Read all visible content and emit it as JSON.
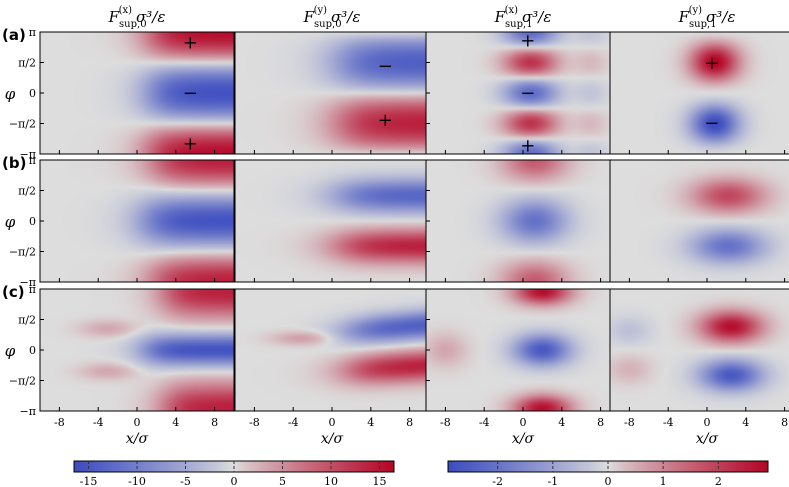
{
  "chart_data": {
    "type": "heatmap",
    "columns": [
      {
        "title": "F_sup,0^(x) σ^3/ε",
        "base": "F",
        "sub": "sup,0",
        "sup": "(x)",
        "tail": "σ³/ε",
        "colorscale": "left"
      },
      {
        "title": "F_sup,0^(y) σ^3/ε",
        "base": "F",
        "sub": "sup,0",
        "sup": "(y)",
        "tail": "σ³/ε",
        "colorscale": "left"
      },
      {
        "title": "F_sup,1^(x) σ^3/ε",
        "base": "F",
        "sub": "sup,1",
        "sup": "(x)",
        "tail": "σ³/ε",
        "colorscale": "right"
      },
      {
        "title": "F_sup,1^(y) σ^3/ε",
        "base": "F",
        "sub": "sup,1",
        "sup": "(y)",
        "tail": "σ³/ε",
        "colorscale": "right"
      }
    ],
    "rows": [
      {
        "label": "(a)"
      },
      {
        "label": "(b)"
      },
      {
        "label": "(c)"
      }
    ],
    "xlabel": "x/σ",
    "ylabel": "φ",
    "xlim": [
      -10,
      10
    ],
    "ylim": [
      -3.1416,
      3.1416
    ],
    "xticks": [
      -8,
      -4,
      0,
      4,
      8
    ],
    "xtick_labels": [
      "-8",
      "-4",
      "0",
      "4",
      "8"
    ],
    "yticks": [
      3.1416,
      1.5708,
      0,
      -1.5708,
      -3.1416
    ],
    "ytick_labels": [
      "π",
      "π/2",
      "0",
      "−π/2",
      "−π"
    ],
    "sign_annotations": [
      {
        "row": 0,
        "col": 0,
        "x": 5.5,
        "y": 2.6,
        "text": "+"
      },
      {
        "row": 0,
        "col": 0,
        "x": 5.5,
        "y": 0.0,
        "text": "−"
      },
      {
        "row": 0,
        "col": 0,
        "x": 5.5,
        "y": -2.6,
        "text": "+"
      },
      {
        "row": 0,
        "col": 1,
        "x": 5.5,
        "y": 1.4,
        "text": "−"
      },
      {
        "row": 0,
        "col": 1,
        "x": 5.5,
        "y": -1.4,
        "text": "+"
      },
      {
        "row": 0,
        "col": 2,
        "x": 0.5,
        "y": 2.7,
        "text": "+"
      },
      {
        "row": 0,
        "col": 2,
        "x": 0.5,
        "y": 0.0,
        "text": "−"
      },
      {
        "row": 0,
        "col": 2,
        "x": 0.5,
        "y": -2.7,
        "text": "+"
      },
      {
        "row": 0,
        "col": 3,
        "x": 0.5,
        "y": 1.55,
        "text": "+"
      },
      {
        "row": 0,
        "col": 3,
        "x": 0.5,
        "y": -1.55,
        "text": "−"
      }
    ],
    "colorbars": [
      {
        "id": "left",
        "range": [
          -16.5,
          16.5
        ],
        "ticks": [
          -15,
          -10,
          -5,
          0,
          5,
          10,
          15
        ],
        "tick_labels": [
          "-15",
          "-10",
          "-5",
          "0",
          "5",
          "10",
          "15"
        ]
      },
      {
        "id": "right",
        "range": [
          -2.9,
          2.9
        ],
        "ticks": [
          -2,
          -1,
          0,
          1,
          2
        ],
        "tick_labels": [
          "-2",
          "-1",
          "0",
          "1",
          "2"
        ]
      }
    ],
    "colormap": "coolwarm",
    "colors": {
      "low": "#3b4cc0",
      "mid": "#dddddd",
      "high": "#b40426"
    }
  }
}
